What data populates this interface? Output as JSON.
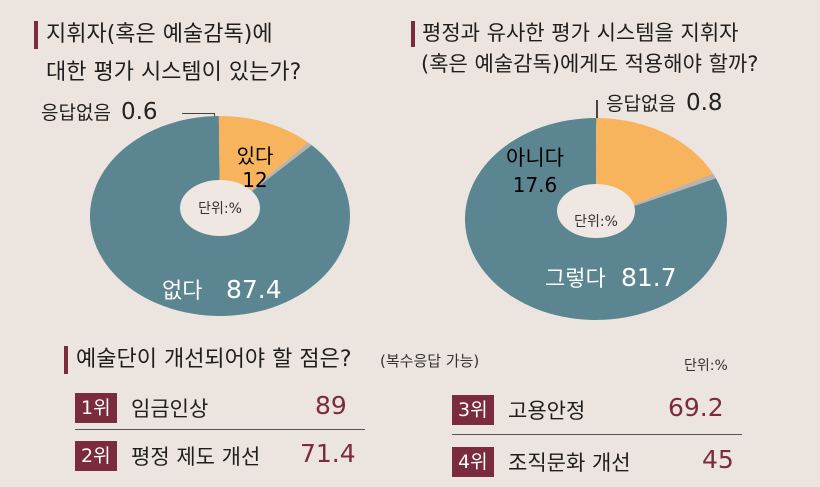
{
  "colors": {
    "background": "#ece5df",
    "accent": "#7a2c3c",
    "teal": "#5b8591",
    "orange": "#f7b45c",
    "gray": "#b8b3ad",
    "center": "#efe7e1"
  },
  "left": {
    "title_line1": "지휘자(혹은 예술감독)에",
    "title_line2": "대한 평가 시스템이 있는가?",
    "noanswer_label": "응답없음",
    "noanswer_value": "0.6",
    "yes_label": "있다",
    "yes_value": "12",
    "no_label": "없다",
    "no_value": "87.4",
    "unit": "단위:%"
  },
  "right": {
    "title_line1": "평정과 유사한 평가 시스템을 지휘자",
    "title_line2": "(혹은 예술감독)에게도 적용해야 할까?",
    "noanswer_label": "응답없음",
    "noanswer_value": "0.8",
    "no_label": "아니다",
    "no_value": "17.6",
    "yes_label": "그렇다",
    "yes_value": "81.7",
    "unit": "단위:%"
  },
  "bottom": {
    "title": "예술단이 개선되어야 할 점은?",
    "subtitle": "(복수응답 가능)",
    "unit": "단위:%",
    "ranks": [
      {
        "rank": "1위",
        "label": "임금인상",
        "value": "89"
      },
      {
        "rank": "2위",
        "label": "평정 제도 개선",
        "value": "71.4"
      },
      {
        "rank": "3위",
        "label": "고용안정",
        "value": "69.2"
      },
      {
        "rank": "4위",
        "label": "조직문화 개선",
        "value": "45"
      }
    ]
  },
  "chart_data": [
    {
      "type": "pie",
      "title": "지휘자(혹은 예술감독)에 대한 평가 시스템이 있는가?",
      "unit": "%",
      "categories": [
        "없다",
        "있다",
        "응답없음"
      ],
      "values": [
        87.4,
        12,
        0.6
      ]
    },
    {
      "type": "pie",
      "title": "평정과 유사한 평가 시스템을 지휘자(혹은 예술감독)에게도 적용해야 할까?",
      "unit": "%",
      "categories": [
        "그렇다",
        "아니다",
        "응답없음"
      ],
      "values": [
        81.7,
        17.6,
        0.8
      ]
    },
    {
      "type": "table",
      "title": "예술단이 개선되어야 할 점은?",
      "subtitle": "(복수응답 가능)",
      "unit": "%",
      "categories": [
        "임금인상",
        "평정 제도 개선",
        "고용안정",
        "조직문화 개선"
      ],
      "values": [
        89,
        71.4,
        69.2,
        45
      ]
    }
  ]
}
